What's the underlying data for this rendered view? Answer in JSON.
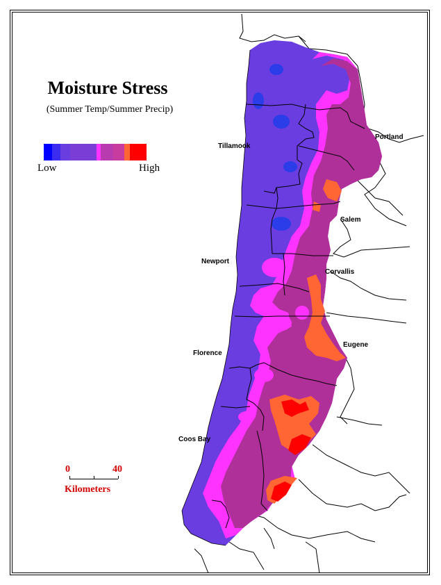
{
  "title": "Moisture Stress",
  "subtitle": "(Summer Temp/Summer Precip)",
  "legend": {
    "low_label": "Low",
    "high_label": "High",
    "colors": [
      "#0000ff",
      "#3b2cf0",
      "#6a3de0",
      "#7a3dd6",
      "#ff33ff",
      "#b83cb0",
      "#c83ca0",
      "#ff6633",
      "#ff0000"
    ]
  },
  "scale_bar": {
    "start": "0",
    "end": "40",
    "unit": "Kilometers"
  },
  "cities": {
    "portland": "Portland",
    "tillamook": "Tillamook",
    "salem": "Salem",
    "newport": "Newport",
    "corvallis": "Corvallis",
    "eugene": "Eugene",
    "florence": "Florence",
    "coos_bay": "Coos Bay"
  },
  "colors": {
    "low": "#6a3de0",
    "mid": "#b0309a",
    "pink": "#ff33ff",
    "orange": "#ff6633",
    "high": "#ff0000",
    "deep_blue": "#2a3de8"
  }
}
